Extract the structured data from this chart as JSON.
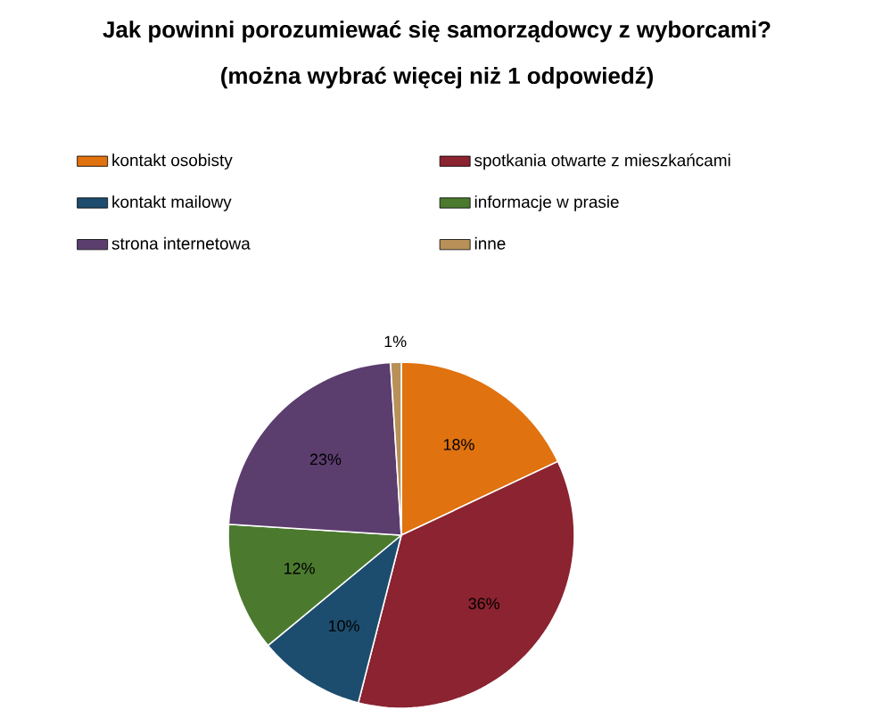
{
  "chart_data": {
    "type": "pie",
    "title": "Jak powinni porozumiewać się samorządowcy z wyborcami?",
    "subtitle": "(można wybrać więcej niż 1 odpowiedź)",
    "categories": [
      "kontakt osobisty",
      "spotkania otwarte z mieszkańcami",
      "kontakt mailowy",
      "informacje w prasie",
      "strona internetowa",
      "inne"
    ],
    "values": [
      18,
      36,
      10,
      12,
      23,
      1
    ],
    "value_labels": [
      "18%",
      "36%",
      "10%",
      "12%",
      "23%",
      "1%"
    ],
    "colors": [
      "#e0720f",
      "#8b2330",
      "#1d4d6e",
      "#4b7a2e",
      "#5b3d6e",
      "#b89058"
    ],
    "legend": "top"
  }
}
